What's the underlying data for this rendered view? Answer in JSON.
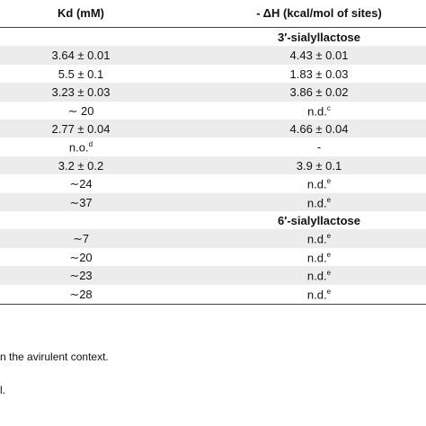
{
  "header": {
    "kd": "Kd (mM)",
    "dh": "- ΔH (kcal/mol of sites)"
  },
  "rows": [
    {
      "dh": "3′-sialyllactose",
      "section": true
    },
    {
      "kd": "3.64 ± 0.01",
      "dh": "4.43 ± 0.01"
    },
    {
      "kd": "5.5 ± 0.1",
      "dh": "1.83 ± 0.03"
    },
    {
      "kd": "3.23 ± 0.03",
      "dh": "3.86 ± 0.02"
    },
    {
      "kd": "∼ 20",
      "dh": "n.d.",
      "dh_sup": "c"
    },
    {
      "kd": "2.77 ± 0.04",
      "dh": "4.66 ± 0.04"
    },
    {
      "kd": "n.o.",
      "kd_sup": "d",
      "dh": "-"
    },
    {
      "kd": "3.2 ± 0.2",
      "dh": "3.9 ± 0.1"
    },
    {
      "kd": "∼24",
      "dh": "n.d.",
      "dh_sup": "e"
    },
    {
      "kd": "∼37",
      "dh": "n.d.",
      "dh_sup": "e"
    },
    {
      "dh": "6′-sialyllactose",
      "section": true
    },
    {
      "kd": "∼7",
      "dh": "n.d.",
      "dh_sup": "e"
    },
    {
      "kd": "∼20",
      "dh": "n.d.",
      "dh_sup": "e"
    },
    {
      "kd": "∼23",
      "dh": "n.d.",
      "dh_sup": "e"
    },
    {
      "kd": "∼28",
      "dh": "n.d.",
      "dh_sup": "e"
    }
  ],
  "footnotes": [
    "n the avirulent context.",
    "l."
  ]
}
